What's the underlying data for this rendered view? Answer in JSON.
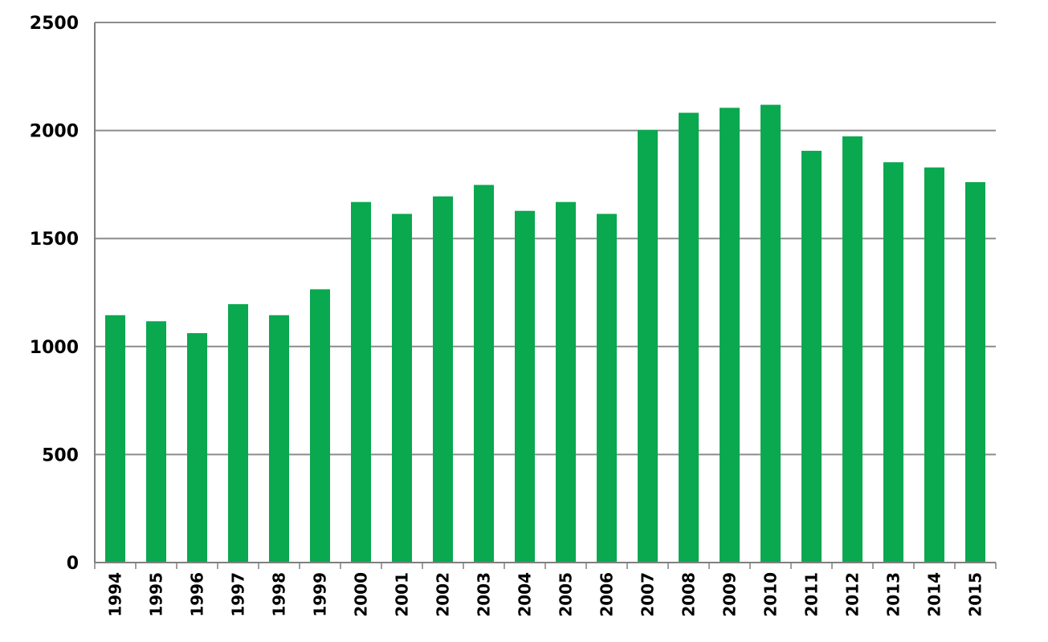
{
  "chart_data": {
    "type": "bar",
    "title": "",
    "xlabel": "",
    "ylabel": "",
    "categories": [
      "1994",
      "1995",
      "1996",
      "1997",
      "1998",
      "1999",
      "2000",
      "2001",
      "2002",
      "2003",
      "2004",
      "2005",
      "2006",
      "2007",
      "2008",
      "2009",
      "2010",
      "2011",
      "2012",
      "2013",
      "2014",
      "2015"
    ],
    "series": [
      {
        "values": [
          1145,
          1117,
          1062,
          1196,
          1145,
          1265,
          1669,
          1614,
          1695,
          1748,
          1628,
          1669,
          1614,
          2002,
          2082,
          2105,
          2119,
          1906,
          1973,
          1853,
          1829,
          1761
        ],
        "color": "#0aa84f"
      }
    ],
    "ylim": [
      0,
      2500
    ],
    "yticks": [
      0,
      500,
      1000,
      1500,
      2000,
      2500
    ],
    "grid": true,
    "grid_color": "#8c8c8c",
    "axis_color": "#7f7f7f",
    "bar_color": "#0aa84f",
    "legend": "none"
  }
}
